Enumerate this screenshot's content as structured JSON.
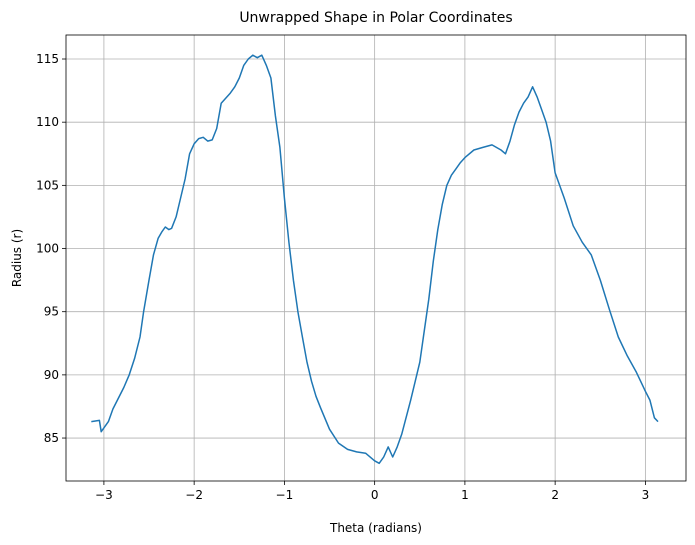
{
  "chart_data": {
    "type": "line",
    "title": "Unwrapped Shape in Polar Coordinates",
    "xlabel": "Theta (radians)",
    "ylabel": "Radius (r)",
    "xlim": [
      -3.42,
      3.45
    ],
    "ylim": [
      81.6,
      116.9
    ],
    "xticks": [
      -3,
      -2,
      -1,
      0,
      1,
      2,
      3
    ],
    "xtick_labels": [
      "−3",
      "−2",
      "−1",
      "0",
      "1",
      "2",
      "3"
    ],
    "yticks": [
      85,
      90,
      95,
      100,
      105,
      110,
      115
    ],
    "ytick_labels": [
      "85",
      "90",
      "95",
      "100",
      "105",
      "110",
      "115"
    ],
    "grid": true,
    "colors": {
      "line": "#1f77b4",
      "grid": "#b0b0b0"
    },
    "series": [
      {
        "x": [
          -3.14,
          -3.05,
          -3.03,
          -2.95,
          -2.9,
          -2.85,
          -2.78,
          -2.72,
          -2.66,
          -2.6,
          -2.56,
          -2.5,
          -2.45,
          -2.4,
          -2.36,
          -2.32,
          -2.28,
          -2.25,
          -2.2,
          -2.15,
          -2.1,
          -2.05,
          -2.0,
          -1.95,
          -1.9,
          -1.85,
          -1.8,
          -1.75,
          -1.7,
          -1.6,
          -1.55,
          -1.5,
          -1.45,
          -1.4,
          -1.35,
          -1.3,
          -1.25,
          -1.2,
          -1.15,
          -1.1,
          -1.05,
          -1.0,
          -0.95,
          -0.9,
          -0.85,
          -0.8,
          -0.75,
          -0.7,
          -0.65,
          -0.6,
          -0.5,
          -0.4,
          -0.3,
          -0.2,
          -0.1,
          0.0,
          0.05,
          0.1,
          0.15,
          0.2,
          0.25,
          0.3,
          0.4,
          0.5,
          0.55,
          0.6,
          0.65,
          0.7,
          0.75,
          0.8,
          0.85,
          0.9,
          0.95,
          1.0,
          1.1,
          1.2,
          1.3,
          1.4,
          1.45,
          1.5,
          1.55,
          1.6,
          1.65,
          1.7,
          1.75,
          1.8,
          1.85,
          1.9,
          1.95,
          2.0,
          2.1,
          2.2,
          2.3,
          2.4,
          2.5,
          2.6,
          2.7,
          2.8,
          2.9,
          3.0,
          3.05,
          3.1,
          3.14
        ],
        "y": [
          86.3,
          86.4,
          85.5,
          86.3,
          87.3,
          88.0,
          89.0,
          90.0,
          91.3,
          93.0,
          95.0,
          97.5,
          99.5,
          100.8,
          101.3,
          101.7,
          101.5,
          101.6,
          102.5,
          104.0,
          105.5,
          107.5,
          108.3,
          108.7,
          108.8,
          108.5,
          108.6,
          109.5,
          111.5,
          112.3,
          112.8,
          113.5,
          114.5,
          115.0,
          115.3,
          115.1,
          115.3,
          114.5,
          113.5,
          110.5,
          108.0,
          104.0,
          100.5,
          97.5,
          95.0,
          93.0,
          91.0,
          89.5,
          88.3,
          87.4,
          85.7,
          84.6,
          84.1,
          83.9,
          83.8,
          83.2,
          83.0,
          83.5,
          84.3,
          83.5,
          84.3,
          85.3,
          88.0,
          91.0,
          93.5,
          96.0,
          99.0,
          101.5,
          103.5,
          105.0,
          105.8,
          106.3,
          106.8,
          107.2,
          107.8,
          108.0,
          108.2,
          107.8,
          107.5,
          108.5,
          109.8,
          110.8,
          111.5,
          112.0,
          112.8,
          112.0,
          111.0,
          110.0,
          108.5,
          106.0,
          104.0,
          101.8,
          100.5,
          99.5,
          97.5,
          95.2,
          93.0,
          91.5,
          90.2,
          88.7,
          88.0,
          86.6,
          86.3
        ]
      }
    ]
  }
}
